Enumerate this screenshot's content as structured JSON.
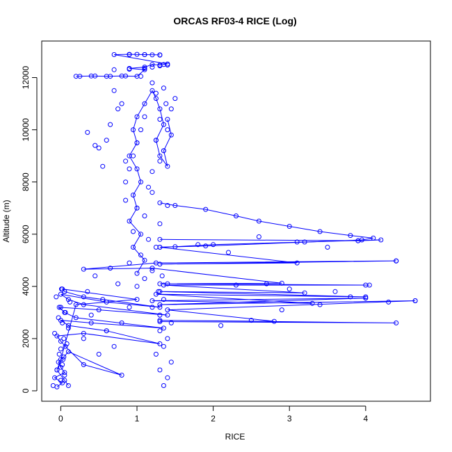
{
  "chart_data": {
    "type": "scatter",
    "title": "ORCAS RF03-4 RICE (Log)",
    "xlabel": "RICE",
    "ylabel": "Altitude (m)",
    "xlim": [
      -0.25,
      4.85
    ],
    "ylim": [
      -400,
      13400
    ],
    "x_ticks": [
      0,
      1,
      2,
      3,
      4
    ],
    "y_ticks": [
      0,
      2000,
      4000,
      6000,
      8000,
      10000,
      12000
    ],
    "grid": false,
    "series": [
      {
        "color": "#0000ff",
        "style": "points-and-lines",
        "marker": "open-circle",
        "trace_segments": [
          {
            "x": [
              -0.05,
              0.02,
              -0.08,
              0.05,
              0.0,
              -0.03,
              0.04,
              0.1,
              0.8,
              0.3,
              0.06,
              0.0,
              -0.05,
              0.3,
              1.3,
              0.6,
              0.1,
              0.0,
              0.4,
              1.35,
              0.2,
              0.05,
              -0.02,
              0.5,
              1.4,
              0.3,
              0.1,
              0.0,
              0.6,
              1.3,
              0.3,
              0.05,
              0.02,
              1.0,
              0.2,
              0.0,
              -0.05,
              0.05,
              0.1
            ],
            "y": [
              150,
              300,
              500,
              700,
              900,
              1100,
              1300,
              1500,
              600,
              1000,
              1700,
              1900,
              2100,
              2200,
              1800,
              2300,
              2500,
              2700,
              2600,
              2400,
              2800,
              3000,
              3200,
              3100,
              2900,
              3300,
              3500,
              3700,
              3400,
              3200,
              3600,
              3800,
              3900,
              3500,
              3300,
              1200,
              800,
              400,
              200
            ]
          },
          {
            "x": [
              1.3,
              4.4,
              1.3,
              2.8,
              1.4,
              4.65,
              1.3,
              4.0,
              1.2,
              3.3,
              1.25,
              4.0,
              1.3,
              3.2,
              1.35,
              4.05,
              1.3,
              2.9,
              1.2,
              0.3,
              1.25,
              4.4,
              1.3,
              3.1,
              1.3,
              1.5,
              2.0,
              3.2,
              4.2,
              3.9,
              1.3
            ],
            "y": [
              2650,
              2600,
              2700,
              2660,
              3100,
              3450,
              3300,
              3550,
              3450,
              3350,
              3700,
              3600,
              3800,
              3750,
              4050,
              4050,
              4100,
              4120,
              4700,
              4660,
              4900,
              4980,
              4850,
              4900,
              5500,
              5520,
              5600,
              5700,
              5780,
              5750,
              5800
            ]
          },
          {
            "x": [
              1.3,
              1.5,
              1.9,
              2.3,
              2.6,
              3.0,
              3.4,
              3.8,
              4.1,
              3.95,
              1.9,
              1.3
            ],
            "y": [
              7200,
              7100,
              6950,
              6700,
              6500,
              6300,
              6100,
              5950,
              5850,
              5780,
              5550,
              5500
            ]
          },
          {
            "x": [
              1.0,
              1.1,
              0.95,
              1.05,
              0.9,
              1.0,
              0.95,
              1.05,
              1.0,
              0.9,
              1.0,
              0.95,
              1.0,
              1.1,
              1.2,
              1.25,
              1.3,
              1.35,
              1.25,
              1.3,
              1.4,
              1.35,
              1.45,
              1.4
            ],
            "y": [
              4500,
              5000,
              5500,
              6000,
              6500,
              7000,
              7500,
              8000,
              8500,
              9000,
              9500,
              10000,
              10500,
              11000,
              11500,
              11200,
              10800,
              10200,
              9600,
              9000,
              8600,
              9200,
              9800,
              10400
            ]
          },
          {
            "x": [
              0.2,
              0.4,
              0.6,
              0.8,
              1.0,
              1.1,
              0.9,
              1.1,
              1.2,
              1.3,
              1.4,
              0.7,
              0.9,
              1.1,
              1.3
            ],
            "y": [
              12050,
              12060,
              12050,
              12060,
              12050,
              12300,
              12350,
              12400,
              12500,
              12480,
              12520,
              12880,
              12890,
              12880,
              12870
            ]
          }
        ],
        "x": [
          -0.1,
          0.0,
          0.05,
          -0.05,
          0.02,
          0.03,
          -0.02,
          0.0,
          0.08,
          0.04,
          -0.08,
          0.1,
          0.02,
          -0.03,
          0.06,
          0.0,
          0.12,
          -0.06,
          0.05,
          0.01,
          1.35,
          1.4,
          1.3,
          1.45,
          1.25,
          1.35,
          1.4,
          1.3,
          1.45,
          1.3,
          1.2,
          1.35,
          1.28,
          1.4,
          1.33,
          1.0,
          1.1,
          1.2,
          0.9,
          1.05,
          1.25,
          1.15,
          0.95,
          1.3,
          1.1,
          1.0,
          0.85,
          1.2,
          1.4,
          1.15,
          0.5,
          0.7,
          0.3,
          0.6,
          0.8,
          0.4,
          0.9,
          0.55,
          0.35,
          0.75,
          0.45,
          0.65,
          2.1,
          2.5,
          2.9,
          3.4,
          3.8,
          4.3,
          2.3,
          2.7,
          3.0,
          3.6,
          4.0,
          1.8,
          2.2,
          2.6,
          3.1,
          3.5,
          3.9,
          4.4,
          4.65,
          4.0,
          0.85,
          0.9,
          0.95,
          1.0,
          1.05,
          1.1,
          0.8,
          0.7,
          0.6,
          0.5,
          0.65,
          0.75,
          0.85,
          0.55,
          0.45,
          0.35,
          1.2,
          1.3,
          1.35,
          1.25,
          1.4,
          1.3,
          1.45,
          1.5,
          1.35,
          1.2,
          1.25,
          1.38,
          0.25,
          0.45,
          0.65,
          0.85,
          1.05,
          0.7,
          0.9,
          1.1,
          1.2,
          1.3,
          1.35,
          1.4,
          0.9,
          1.0,
          1.1,
          1.2,
          1.3
        ],
        "y": [
          200,
          400,
          600,
          800,
          1000,
          1200,
          1400,
          1600,
          1800,
          2000,
          2200,
          2400,
          2600,
          2800,
          3000,
          3200,
          3400,
          3600,
          3800,
          3900,
          200,
          500,
          800,
          1100,
          1400,
          1700,
          2000,
          2300,
          2600,
          2900,
          3200,
          3500,
          3800,
          4100,
          4400,
          4000,
          4300,
          4600,
          4900,
          5200,
          5500,
          5800,
          6100,
          6400,
          6700,
          7000,
          7300,
          7600,
          7100,
          7800,
          1400,
          1700,
          2000,
          2300,
          2600,
          2900,
          3200,
          3500,
          3800,
          4100,
          4400,
          4700,
          2500,
          2700,
          3100,
          3300,
          3600,
          3400,
          4050,
          4100,
          3900,
          3800,
          3550,
          5600,
          5300,
          5900,
          5700,
          5500,
          5750,
          4970,
          3450,
          4050,
          8000,
          8500,
          9000,
          9500,
          10000,
          10500,
          11000,
          11500,
          9600,
          9300,
          10200,
          10800,
          8800,
          8600,
          9400,
          9900,
          8400,
          8800,
          9200,
          9600,
          10000,
          10400,
          10800,
          11200,
          11600,
          11800,
          11400,
          11000,
          12050,
          12060,
          12050,
          12060,
          12050,
          12300,
          12320,
          12350,
          12400,
          12450,
          12500,
          12480,
          12880,
          12890,
          12880,
          12870,
          12860
        ]
      }
    ]
  }
}
